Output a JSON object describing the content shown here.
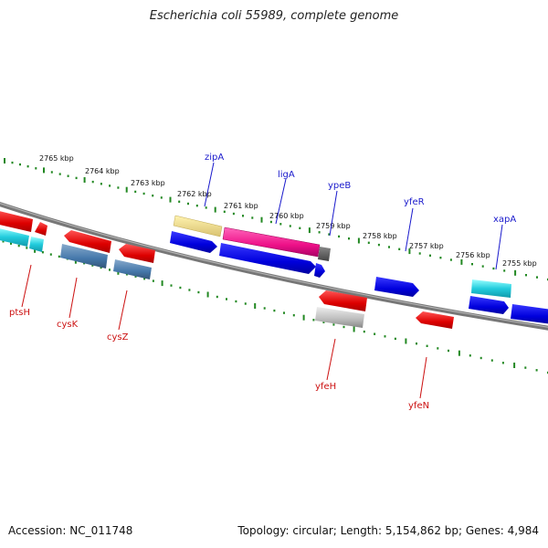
{
  "title": "Escherichia coli 55989, complete genome",
  "footer": {
    "accession": "Accession: NC_011748",
    "summary": "Topology: circular; Length: 5,154,862 bp; Genes: 4,984"
  },
  "scale_labels": [
    "2765 kbp",
    "2764 kbp",
    "2763 kbp",
    "2762 kbp",
    "2761 kbp",
    "2760 kbp",
    "2759 kbp",
    "2758 kbp",
    "2757 kbp",
    "2756 kbp",
    "2755 kbp"
  ],
  "genes_top": [
    "zipA",
    "ligA",
    "ypeB",
    "yfeR",
    "xapA"
  ],
  "genes_bottom": [
    "ptsH",
    "cysK",
    "cysZ",
    "yfeH",
    "yfeN"
  ],
  "colors": {
    "forward_label": "#1a1acc",
    "reverse_label": "#cc1111",
    "tick": "#228822",
    "backbone": "#808080"
  }
}
